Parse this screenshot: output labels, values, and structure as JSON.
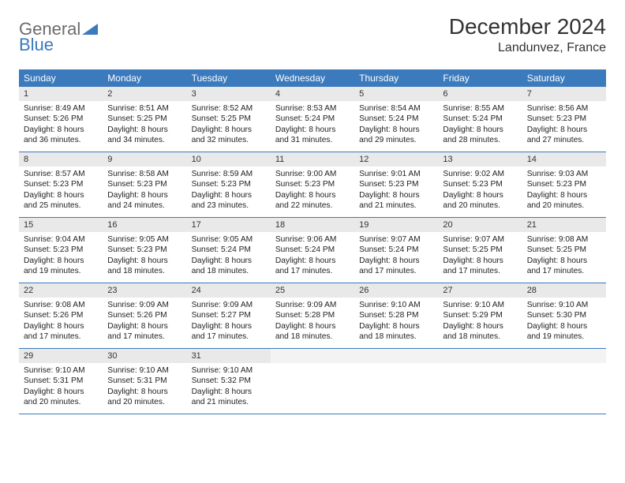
{
  "brand": {
    "general": "General",
    "blue": "Blue"
  },
  "title": "December 2024",
  "location": "Landunvez, France",
  "colors": {
    "header_bg": "#3a7abd",
    "header_text": "#ffffff",
    "daynum_bg": "#e9e9e9",
    "border": "#3a7abd",
    "logo_gray": "#6b6b6b",
    "logo_blue": "#3a7abd"
  },
  "day_names": [
    "Sunday",
    "Monday",
    "Tuesday",
    "Wednesday",
    "Thursday",
    "Friday",
    "Saturday"
  ],
  "weeks": [
    [
      {
        "n": "1",
        "sr": "8:49 AM",
        "ss": "5:26 PM",
        "dl": "8 hours and 36 minutes."
      },
      {
        "n": "2",
        "sr": "8:51 AM",
        "ss": "5:25 PM",
        "dl": "8 hours and 34 minutes."
      },
      {
        "n": "3",
        "sr": "8:52 AM",
        "ss": "5:25 PM",
        "dl": "8 hours and 32 minutes."
      },
      {
        "n": "4",
        "sr": "8:53 AM",
        "ss": "5:24 PM",
        "dl": "8 hours and 31 minutes."
      },
      {
        "n": "5",
        "sr": "8:54 AM",
        "ss": "5:24 PM",
        "dl": "8 hours and 29 minutes."
      },
      {
        "n": "6",
        "sr": "8:55 AM",
        "ss": "5:24 PM",
        "dl": "8 hours and 28 minutes."
      },
      {
        "n": "7",
        "sr": "8:56 AM",
        "ss": "5:23 PM",
        "dl": "8 hours and 27 minutes."
      }
    ],
    [
      {
        "n": "8",
        "sr": "8:57 AM",
        "ss": "5:23 PM",
        "dl": "8 hours and 25 minutes."
      },
      {
        "n": "9",
        "sr": "8:58 AM",
        "ss": "5:23 PM",
        "dl": "8 hours and 24 minutes."
      },
      {
        "n": "10",
        "sr": "8:59 AM",
        "ss": "5:23 PM",
        "dl": "8 hours and 23 minutes."
      },
      {
        "n": "11",
        "sr": "9:00 AM",
        "ss": "5:23 PM",
        "dl": "8 hours and 22 minutes."
      },
      {
        "n": "12",
        "sr": "9:01 AM",
        "ss": "5:23 PM",
        "dl": "8 hours and 21 minutes."
      },
      {
        "n": "13",
        "sr": "9:02 AM",
        "ss": "5:23 PM",
        "dl": "8 hours and 20 minutes."
      },
      {
        "n": "14",
        "sr": "9:03 AM",
        "ss": "5:23 PM",
        "dl": "8 hours and 20 minutes."
      }
    ],
    [
      {
        "n": "15",
        "sr": "9:04 AM",
        "ss": "5:23 PM",
        "dl": "8 hours and 19 minutes."
      },
      {
        "n": "16",
        "sr": "9:05 AM",
        "ss": "5:23 PM",
        "dl": "8 hours and 18 minutes."
      },
      {
        "n": "17",
        "sr": "9:05 AM",
        "ss": "5:24 PM",
        "dl": "8 hours and 18 minutes."
      },
      {
        "n": "18",
        "sr": "9:06 AM",
        "ss": "5:24 PM",
        "dl": "8 hours and 17 minutes."
      },
      {
        "n": "19",
        "sr": "9:07 AM",
        "ss": "5:24 PM",
        "dl": "8 hours and 17 minutes."
      },
      {
        "n": "20",
        "sr": "9:07 AM",
        "ss": "5:25 PM",
        "dl": "8 hours and 17 minutes."
      },
      {
        "n": "21",
        "sr": "9:08 AM",
        "ss": "5:25 PM",
        "dl": "8 hours and 17 minutes."
      }
    ],
    [
      {
        "n": "22",
        "sr": "9:08 AM",
        "ss": "5:26 PM",
        "dl": "8 hours and 17 minutes."
      },
      {
        "n": "23",
        "sr": "9:09 AM",
        "ss": "5:26 PM",
        "dl": "8 hours and 17 minutes."
      },
      {
        "n": "24",
        "sr": "9:09 AM",
        "ss": "5:27 PM",
        "dl": "8 hours and 17 minutes."
      },
      {
        "n": "25",
        "sr": "9:09 AM",
        "ss": "5:28 PM",
        "dl": "8 hours and 18 minutes."
      },
      {
        "n": "26",
        "sr": "9:10 AM",
        "ss": "5:28 PM",
        "dl": "8 hours and 18 minutes."
      },
      {
        "n": "27",
        "sr": "9:10 AM",
        "ss": "5:29 PM",
        "dl": "8 hours and 18 minutes."
      },
      {
        "n": "28",
        "sr": "9:10 AM",
        "ss": "5:30 PM",
        "dl": "8 hours and 19 minutes."
      }
    ],
    [
      {
        "n": "29",
        "sr": "9:10 AM",
        "ss": "5:31 PM",
        "dl": "8 hours and 20 minutes."
      },
      {
        "n": "30",
        "sr": "9:10 AM",
        "ss": "5:31 PM",
        "dl": "8 hours and 20 minutes."
      },
      {
        "n": "31",
        "sr": "9:10 AM",
        "ss": "5:32 PM",
        "dl": "8 hours and 21 minutes."
      },
      null,
      null,
      null,
      null
    ]
  ],
  "labels": {
    "sunrise": "Sunrise: ",
    "sunset": "Sunset: ",
    "daylight": "Daylight: "
  }
}
